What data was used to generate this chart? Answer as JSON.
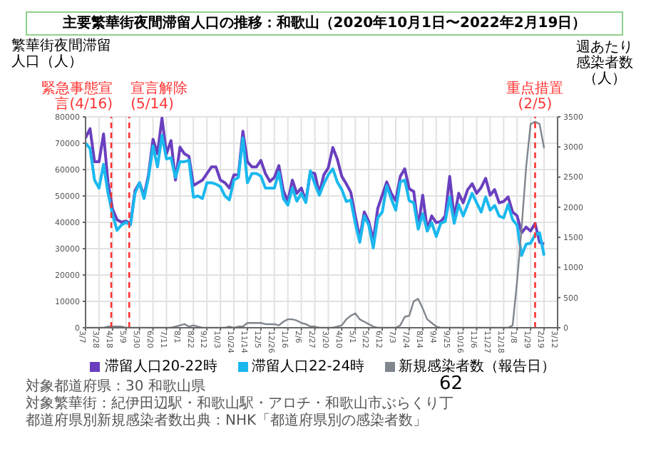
{
  "chart_data": {
    "type": "line",
    "title": "主要繁華街夜間滞留人口の推移：和歌山（2020年10月1日〜2022年2月19日）",
    "ylabel": "繁華街夜間滞留人口（人）",
    "y2label": "週あたり感染者数（人）",
    "x": [
      "2020-03-07",
      "2020-03-14",
      "2020-03-21",
      "2020-03-28",
      "2020-04-04",
      "2020-04-11",
      "2020-04-18",
      "2020-04-25",
      "2020-05-02",
      "2020-05-09",
      "2020-05-16",
      "2020-05-23",
      "2020-05-30",
      "2020-06-06",
      "2020-06-13",
      "2020-06-20",
      "2020-06-27",
      "2020-07-04",
      "2020-07-11",
      "2020-07-18",
      "2020-07-25",
      "2020-08-01",
      "2020-08-08",
      "2020-08-15",
      "2020-08-22",
      "2020-08-29",
      "2020-09-05",
      "2020-09-12",
      "2020-09-19",
      "2020-09-26",
      "2020-10-03",
      "2020-10-10",
      "2020-10-17",
      "2020-10-24",
      "2020-10-31",
      "2020-11-07",
      "2020-11-14",
      "2020-11-21",
      "2020-11-28",
      "2020-12-05",
      "2020-12-12",
      "2020-12-19",
      "2020-12-26",
      "2021-01-02",
      "2021-01-09",
      "2021-01-16",
      "2021-01-23",
      "2021-01-30",
      "2021-02-06",
      "2021-02-13",
      "2021-02-20",
      "2021-02-27",
      "2021-03-06",
      "2021-03-13",
      "2021-03-20",
      "2021-03-27",
      "2021-04-03",
      "2021-04-10",
      "2021-04-17",
      "2021-04-24",
      "2021-05-01",
      "2021-05-08",
      "2021-05-15",
      "2021-05-22",
      "2021-05-29",
      "2021-06-05",
      "2021-06-12",
      "2021-06-19",
      "2021-06-26",
      "2021-07-03",
      "2021-07-10",
      "2021-07-17",
      "2021-07-24",
      "2021-07-31",
      "2021-08-07",
      "2021-08-14",
      "2021-08-21",
      "2021-08-28",
      "2021-09-04",
      "2021-09-11",
      "2021-09-18",
      "2021-09-25",
      "2021-10-02",
      "2021-10-09",
      "2021-10-16",
      "2021-10-23",
      "2021-10-30",
      "2021-11-06",
      "2021-11-13",
      "2021-11-20",
      "2021-11-27",
      "2021-12-04",
      "2021-12-11",
      "2021-12-18",
      "2021-12-25",
      "2022-01-01",
      "2022-01-08",
      "2022-01-15",
      "2022-01-22",
      "2022-01-29",
      "2022-02-05",
      "2022-02-12",
      "2022-02-19"
    ],
    "series": [
      {
        "name": "滞留人口20-22時",
        "color": "#6a3fbf",
        "values": [
          72000,
          75500,
          63000,
          63000,
          73500,
          55000,
          45000,
          41000,
          40000,
          40500,
          39500,
          52000,
          55000,
          50000,
          58000,
          71500,
          66000,
          79500,
          66000,
          71000,
          56000,
          68500,
          66000,
          65000,
          54000,
          55000,
          56000,
          58500,
          61000,
          61000,
          56000,
          55000,
          53000,
          58000,
          58000,
          74500,
          63000,
          61000,
          61000,
          63500,
          58500,
          55500,
          57000,
          61500,
          52000,
          48000,
          56000,
          51000,
          53000,
          48000,
          59000,
          58500,
          51000,
          58000,
          60700,
          68400,
          63900,
          57400,
          54600,
          51400,
          42400,
          33900,
          43900,
          40300,
          33200,
          45300,
          50300,
          55300,
          51000,
          48200,
          57400,
          60300,
          52700,
          51700,
          38200,
          50300,
          37400,
          42400,
          39900,
          40300,
          42400,
          57400,
          41700,
          51000,
          47400,
          52400,
          54600,
          51000,
          53200,
          56700,
          50300,
          52400,
          47400,
          47900,
          49600,
          43900,
          42400,
          36000,
          38200,
          36700,
          39600,
          32400,
          31700
        ]
      },
      {
        "name": "滞留人口22-24時",
        "color": "#1ab8ee",
        "values": [
          70000,
          68000,
          56000,
          53000,
          62000,
          51000,
          43000,
          37000,
          39000,
          40000,
          39000,
          51000,
          55000,
          49000,
          57000,
          69000,
          61000,
          73000,
          64000,
          64500,
          57000,
          63000,
          63000,
          63500,
          49500,
          50000,
          49000,
          55000,
          55000,
          54500,
          53500,
          50000,
          48500,
          56000,
          57000,
          72000,
          55000,
          58500,
          58500,
          57500,
          53000,
          53000,
          53000,
          59000,
          49000,
          46500,
          53000,
          48000,
          51000,
          47500,
          59500,
          54500,
          50300,
          54600,
          58000,
          60300,
          55300,
          52400,
          47900,
          48400,
          39600,
          32400,
          42400,
          38900,
          30300,
          41700,
          43900,
          53900,
          48900,
          44600,
          55300,
          56000,
          48200,
          47400,
          37400,
          43200,
          36700,
          39900,
          34600,
          39600,
          40300,
          49600,
          39600,
          46700,
          42400,
          46700,
          51000,
          47400,
          43900,
          49600,
          44600,
          46400,
          42400,
          41700,
          46700,
          41000,
          38900,
          27400,
          31700,
          32100,
          35300,
          36000,
          27400
        ]
      },
      {
        "name": "新規感染者数（報告日）",
        "color": "#80868e",
        "axis": "y2",
        "values": [
          0,
          0,
          0,
          0,
          0,
          20,
          20,
          20,
          20,
          0,
          0,
          0,
          0,
          0,
          0,
          0,
          0,
          0,
          0,
          0,
          20,
          40,
          60,
          20,
          40,
          20,
          0,
          0,
          0,
          0,
          0,
          0,
          20,
          0,
          20,
          20,
          80,
          80,
          80,
          80,
          60,
          60,
          60,
          40,
          100,
          140,
          140,
          120,
          80,
          60,
          20,
          20,
          0,
          0,
          0,
          0,
          20,
          40,
          140,
          200,
          240,
          140,
          100,
          60,
          20,
          0,
          0,
          0,
          0,
          0,
          40,
          180,
          200,
          440,
          480,
          320,
          140,
          80,
          20,
          0,
          0,
          0,
          0,
          0,
          0,
          0,
          0,
          0,
          0,
          0,
          0,
          0,
          0,
          0,
          0,
          40,
          780,
          1660,
          2660,
          3380,
          3420,
          3380,
          2980
        ]
      }
    ],
    "xlim": [
      "2020-03-07",
      "2022-03-12"
    ],
    "xticks": [
      {
        "value": "2020-03-07",
        "label": "3/7"
      },
      {
        "value": "2020-03-28",
        "label": "3/28"
      },
      {
        "value": "2020-04-18",
        "label": "4/18"
      },
      {
        "value": "2020-05-09",
        "label": "5/9"
      },
      {
        "value": "2020-05-30",
        "label": "5/30"
      },
      {
        "value": "2020-06-20",
        "label": "6/20"
      },
      {
        "value": "2020-07-11",
        "label": "7/11"
      },
      {
        "value": "2020-08-01",
        "label": "8/1"
      },
      {
        "value": "2020-08-22",
        "label": "8/22"
      },
      {
        "value": "2020-09-12",
        "label": "9/12"
      },
      {
        "value": "2020-10-03",
        "label": "10/3"
      },
      {
        "value": "2020-10-24",
        "label": "10/24"
      },
      {
        "value": "2020-11-14",
        "label": "11/14"
      },
      {
        "value": "2020-12-05",
        "label": "12/5"
      },
      {
        "value": "2020-12-26",
        "label": "12/26"
      },
      {
        "value": "2021-01-16",
        "label": "1/16"
      },
      {
        "value": "2021-02-06",
        "label": "2/6"
      },
      {
        "value": "2021-02-27",
        "label": "2/27"
      },
      {
        "value": "2021-03-20",
        "label": "3/20"
      },
      {
        "value": "2021-04-10",
        "label": "4/10"
      },
      {
        "value": "2021-05-01",
        "label": "5/1"
      },
      {
        "value": "2021-05-22",
        "label": "5/22"
      },
      {
        "value": "2021-06-12",
        "label": "6/12"
      },
      {
        "value": "2021-07-03",
        "label": "7/3"
      },
      {
        "value": "2021-07-24",
        "label": "7/24"
      },
      {
        "value": "2021-08-14",
        "label": "8/14"
      },
      {
        "value": "2021-09-04",
        "label": "9/4"
      },
      {
        "value": "2021-09-25",
        "label": "9/25"
      },
      {
        "value": "2021-10-16",
        "label": "10/16"
      },
      {
        "value": "2021-11-06",
        "label": "11/6"
      },
      {
        "value": "2021-11-27",
        "label": "11/27"
      },
      {
        "value": "2021-12-18",
        "label": "12/18"
      },
      {
        "value": "2022-01-08",
        "label": "1/8"
      },
      {
        "value": "2022-01-29",
        "label": "1/29"
      },
      {
        "value": "2022-02-19",
        "label": "2/19"
      },
      {
        "value": "2022-03-12",
        "label": "3/12"
      }
    ],
    "ylim": [
      0,
      80000
    ],
    "yticks": [
      0,
      10000,
      20000,
      30000,
      40000,
      50000,
      60000,
      70000,
      80000
    ],
    "y2lim": [
      0,
      3500
    ],
    "y2ticks": [
      0,
      500,
      1000,
      1500,
      2000,
      2500,
      3000,
      3500
    ],
    "ref_lines": [
      {
        "axis": "x",
        "value": "2020-04-16",
        "label": "緊急事態宣言(4/16)",
        "color": "#ff3333",
        "line_style": "dashed"
      },
      {
        "axis": "x",
        "value": "2020-05-14",
        "label": "宣言解除(5/14)",
        "color": "#ff3333",
        "line_style": "dashed"
      },
      {
        "axis": "x",
        "value": "2022-02-05",
        "label": "重点措置(2/5)",
        "color": "#ff3333",
        "line_style": "dashed"
      }
    ],
    "grid": true,
    "legend": "bottom",
    "annotations": [
      "対象都道府県：30 和歌山県",
      "対象繁華街：紀伊田辺駅・和歌山駅・アロチ・和歌山市ぶらくり丁",
      "都道府県別新規感染者数出典：NHK「都道府県別の感染者数」",
      "62"
    ]
  }
}
